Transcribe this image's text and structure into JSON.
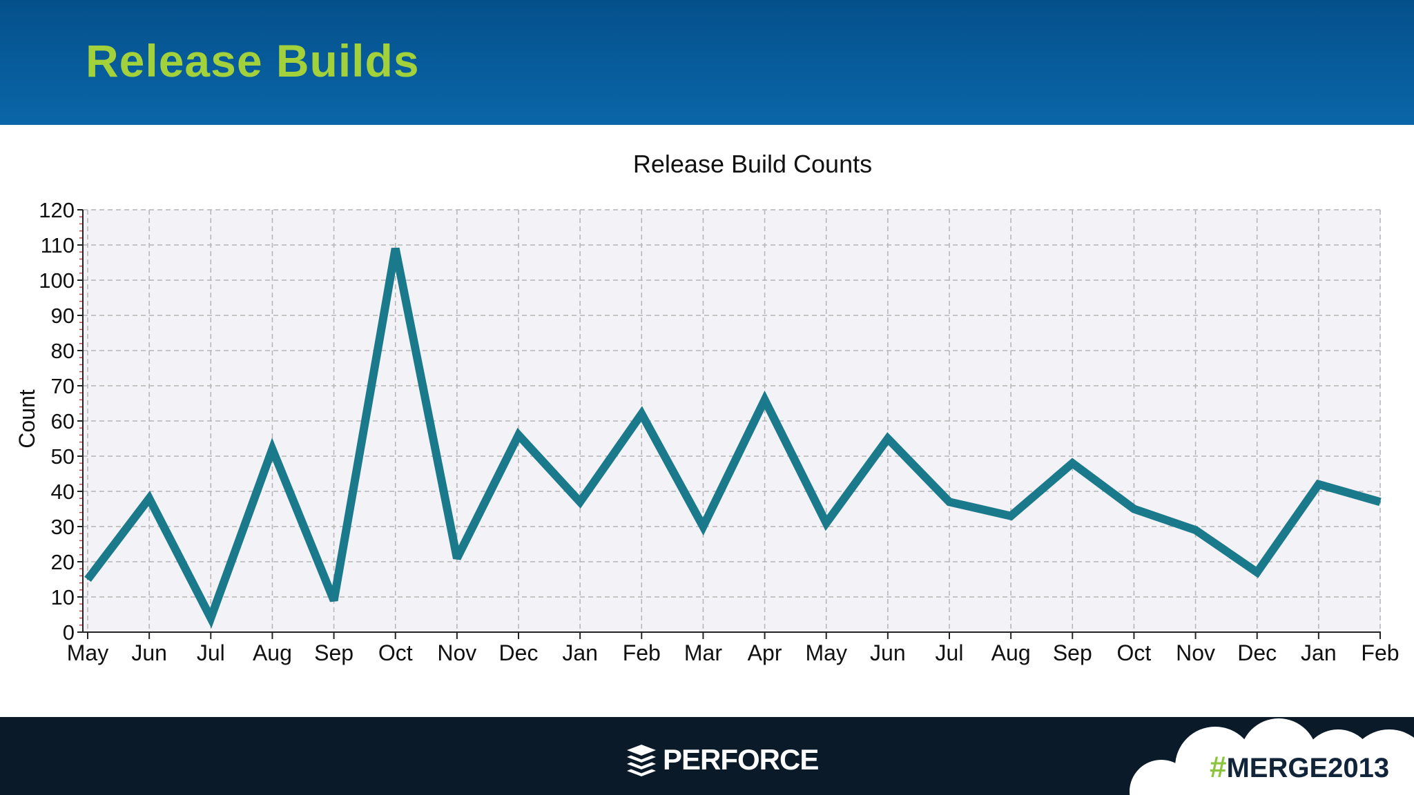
{
  "slide": {
    "title": "Release Builds"
  },
  "colors": {
    "header": "#0a5d9e",
    "title": "#a3d13c",
    "line": "#1a7a8c",
    "plot_bg": "#f3f2f6",
    "grid": "#b4b4b4",
    "footer": "#0a1a29",
    "hashtag": "#8cc63f"
  },
  "footer": {
    "brand": "PERFORCE",
    "brand_icon": "stacked-layers-icon",
    "event_hash": "#",
    "event_tag": "MERGE2013"
  },
  "chart_data": {
    "type": "line",
    "title": "Release Build Counts",
    "xlabel": "",
    "ylabel": "Count",
    "ylim": [
      0,
      120
    ],
    "yticks": [
      0,
      10,
      20,
      30,
      40,
      50,
      60,
      70,
      80,
      90,
      100,
      110,
      120
    ],
    "grid": true,
    "categories": [
      "May",
      "Jun",
      "Jul",
      "Aug",
      "Sep",
      "Oct",
      "Nov",
      "Dec",
      "Jan",
      "Feb",
      "Mar",
      "Apr",
      "May",
      "Jun",
      "Jul",
      "Aug",
      "Sep",
      "Oct",
      "Nov",
      "Dec",
      "Jan",
      "Feb"
    ],
    "series": [
      {
        "values": [
          15,
          38,
          4,
          52,
          9,
          109,
          21,
          56,
          37,
          62,
          30,
          66,
          31,
          55,
          37,
          33,
          48,
          35,
          29,
          17,
          42,
          37
        ]
      }
    ]
  }
}
